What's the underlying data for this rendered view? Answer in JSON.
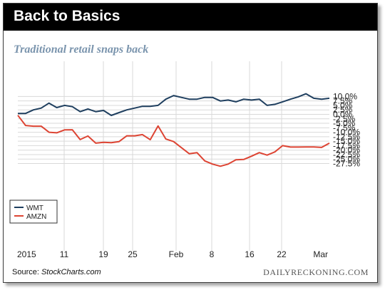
{
  "header": {
    "title": "Back to Basics"
  },
  "footer": {
    "source_label": "Source: ",
    "source_name": "StockCharts.com",
    "credit": "DAILYRECKONING.COM"
  },
  "colors": {
    "header_bg": "#000000",
    "subtitle": "#7a94ad",
    "wmt": "#1f3f5f",
    "amzn": "#dd4433",
    "grid": "#d9d9d9"
  },
  "chart_data": {
    "type": "line",
    "title": "Traditional retail snaps back",
    "x_ticks": [
      "2015",
      "11",
      "19",
      "25",
      "Feb",
      "8",
      "16",
      "22",
      "Mar"
    ],
    "y_ticks": [
      "10.0%",
      "7.5%",
      "5.0%",
      "2.5%",
      "0.0%",
      "-2.5%",
      "-5.0%",
      "-7.5%",
      "-10.0%",
      "-12.5%",
      "-15.0%",
      "-17.5%",
      "-20.0%",
      "-22.5%",
      "-25.0%",
      "-27.5%"
    ],
    "ylim": [
      -29.5,
      12
    ],
    "grid": true,
    "legend_position": "bottom-left",
    "series": [
      {
        "name": "WMT",
        "values": [
          0.5,
          0.5,
          2.5,
          3.5,
          6.3,
          3.8,
          5.0,
          4.3,
          1.5,
          3.0,
          1.5,
          2.2,
          -0.6,
          1.0,
          2.5,
          3.5,
          4.5,
          4.5,
          5.0,
          8.5,
          10.5,
          9.5,
          8.5,
          8.5,
          9.5,
          9.5,
          7.5,
          8.0,
          7.0,
          8.5,
          8.0,
          8.5,
          5.0,
          5.6,
          7.0,
          8.5,
          9.8,
          11.5,
          9.0,
          8.5,
          9.0
        ]
      },
      {
        "name": "AMZN",
        "values": [
          -0.5,
          -6.2,
          -6.6,
          -6.6,
          -10.0,
          -10.3,
          -8.7,
          -8.6,
          -14.1,
          -12.1,
          -16.1,
          -15.6,
          -15.8,
          -15.2,
          -12.0,
          -12.0,
          -11.3,
          -14.2,
          -6.5,
          -13.8,
          -15.2,
          -18.6,
          -22.0,
          -21.4,
          -26.0,
          -27.8,
          -29.0,
          -27.8,
          -25.4,
          -25.2,
          -23.4,
          -21.4,
          -22.8,
          -21.0,
          -17.5,
          -18.3,
          -18.3,
          -18.2,
          -18.2,
          -18.5,
          -16.1
        ]
      }
    ]
  }
}
